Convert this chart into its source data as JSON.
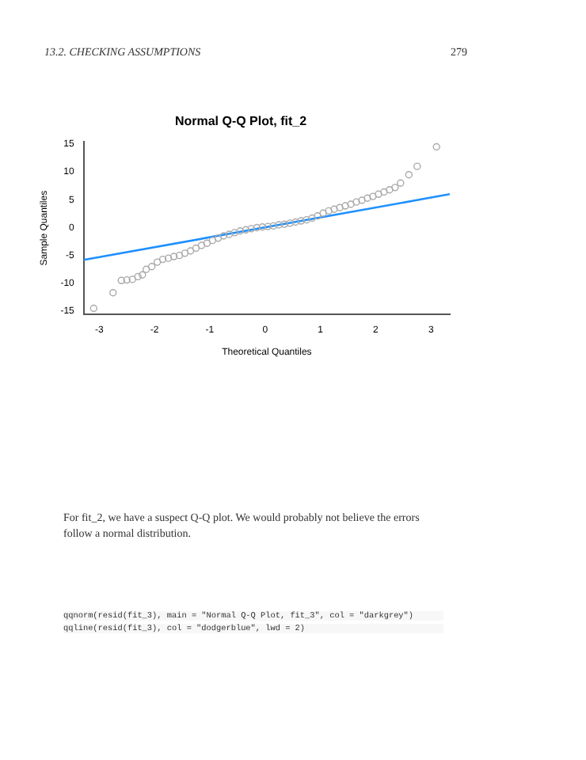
{
  "chart_data": {
    "type": "scatter",
    "title": "Normal Q-Q Plot, fit_2",
    "xlabel": "Theoretical Quantiles",
    "ylabel": "Sample Quantiles",
    "xlim": [
      -3.28,
      3.34
    ],
    "xticks": [
      -3,
      -2,
      -1,
      0,
      1,
      2,
      3
    ],
    "ylim": [
      -15.6,
      15.4
    ],
    "yticks": [
      -15,
      -10,
      -5,
      0,
      5,
      10,
      15
    ],
    "grid": false,
    "marker": "circle",
    "series": [
      {
        "color": "#a9a9a9",
        "x": [
          -3.1,
          -2.75,
          -2.6,
          -2.5,
          -2.4,
          -2.3,
          -2.22,
          -2.15,
          -2.05,
          -1.95,
          -1.85,
          -1.75,
          -1.65,
          -1.55,
          -1.45,
          -1.35,
          -1.25,
          -1.15,
          -1.05,
          -0.95,
          -0.85,
          -0.75,
          -0.65,
          -0.55,
          -0.45,
          -0.35,
          -0.25,
          -0.15,
          -0.05,
          0.05,
          0.15,
          0.25,
          0.35,
          0.45,
          0.55,
          0.65,
          0.75,
          0.85,
          0.95,
          1.05,
          1.15,
          1.25,
          1.35,
          1.45,
          1.55,
          1.65,
          1.75,
          1.85,
          1.95,
          2.05,
          2.15,
          2.25,
          2.35,
          2.45,
          2.6,
          2.75,
          3.1
        ],
        "values": [
          -14.5,
          -11.7,
          -9.5,
          -9.4,
          -9.3,
          -8.8,
          -8.5,
          -7.5,
          -7.0,
          -6.2,
          -5.7,
          -5.5,
          -5.2,
          -5.0,
          -4.6,
          -4.2,
          -3.7,
          -3.2,
          -2.8,
          -2.3,
          -1.9,
          -1.5,
          -1.2,
          -0.9,
          -0.6,
          -0.4,
          -0.2,
          0.0,
          0.1,
          0.2,
          0.3,
          0.5,
          0.6,
          0.8,
          1.0,
          1.2,
          1.4,
          1.7,
          2.1,
          2.6,
          3.0,
          3.3,
          3.6,
          3.9,
          4.2,
          4.6,
          4.9,
          5.3,
          5.6,
          6.0,
          6.4,
          6.8,
          7.2,
          8.0,
          9.5,
          11.0,
          14.5
        ]
      },
      {
        "type": "line",
        "color": "#1e90ff",
        "marker": "none",
        "x": [
          -3.28,
          3.34
        ],
        "values": [
          -5.8,
          6.0
        ]
      }
    ],
    "annotations": [
      "13.2. CHECKING ASSUMPTIONS",
      "279",
      "For fit_2, we have a suspect Q-Q plot. We would probably not believe the errors follow a normal distribution.",
      "qqnorm(resid(fit_3), main = \"Normal Q-Q Plot, fit_3\", col = \"darkgrey\")",
      "qqline(resid(fit_3), col = \"dodgerblue\", lwd = 2)"
    ]
  }
}
